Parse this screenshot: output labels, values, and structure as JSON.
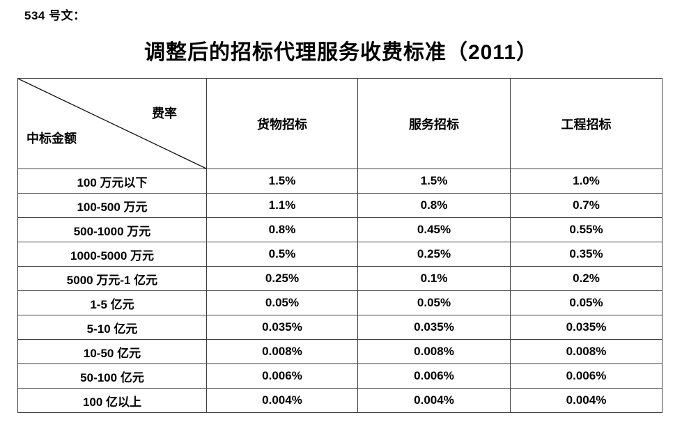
{
  "doc": {
    "ref_label": "534 号文：",
    "title": "调整后的招标代理服务收费标准（2011）"
  },
  "table": {
    "corner": {
      "top_right": "费率",
      "bottom_left": "中标金额"
    },
    "columns": [
      "货物招标",
      "服务招标",
      "工程招标"
    ],
    "rows": [
      {
        "label": "100 万元以下",
        "values": [
          "1.5%",
          "1.5%",
          "1.0%"
        ]
      },
      {
        "label": "100-500 万元",
        "values": [
          "1.1%",
          "0.8%",
          "0.7%"
        ]
      },
      {
        "label": "500-1000 万元",
        "values": [
          "0.8%",
          "0.45%",
          "0.55%"
        ]
      },
      {
        "label": "1000-5000 万元",
        "values": [
          "0.5%",
          "0.25%",
          "0.35%"
        ]
      },
      {
        "label": "5000 万元-1 亿元",
        "values": [
          "0.25%",
          "0.1%",
          "0.2%"
        ]
      },
      {
        "label": "1-5 亿元",
        "values": [
          "0.05%",
          "0.05%",
          "0.05%"
        ]
      },
      {
        "label": "5-10 亿元",
        "values": [
          "0.035%",
          "0.035%",
          "0.035%"
        ]
      },
      {
        "label": "10-50 亿元",
        "values": [
          "0.008%",
          "0.008%",
          "0.008%"
        ]
      },
      {
        "label": "50-100 亿元",
        "values": [
          "0.006%",
          "0.006%",
          "0.006%"
        ]
      },
      {
        "label": "100 亿以上",
        "values": [
          "0.004%",
          "0.004%",
          "0.004%"
        ]
      }
    ]
  },
  "colors": {
    "border": "#3f3f3f",
    "text": "#000000",
    "background": "#ffffff"
  }
}
